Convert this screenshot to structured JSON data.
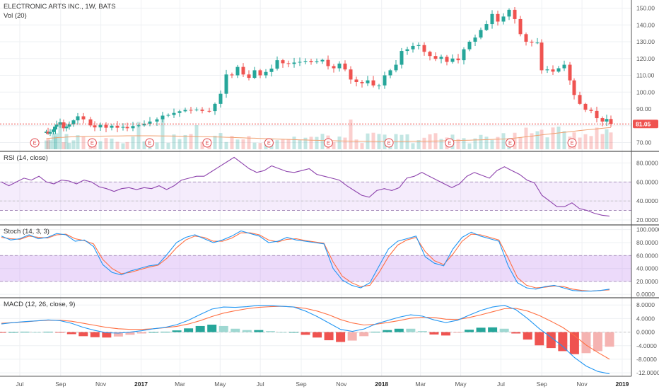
{
  "chart_data": {
    "type": "candlestick",
    "title": "ELECTRONIC ARTS INC., 1W, BATS",
    "time_axis": {
      "ticks": [
        {
          "label": "Jul"
        },
        {
          "label": "Sep"
        },
        {
          "label": "Nov"
        },
        {
          "label": "2017",
          "bold": true
        },
        {
          "label": "Mar"
        },
        {
          "label": "May"
        },
        {
          "label": "Jul"
        },
        {
          "label": "Sep"
        },
        {
          "label": "Nov"
        },
        {
          "label": "2018",
          "bold": true
        },
        {
          "label": "Mar"
        },
        {
          "label": "May"
        },
        {
          "label": "Jul"
        },
        {
          "label": "Sep"
        },
        {
          "label": "Nov"
        },
        {
          "label": "2019",
          "bold": true
        }
      ],
      "start": "2016-06-01",
      "end": "2019-01-15"
    },
    "price_panel": {
      "ylim": [
        66,
        154
      ],
      "ticks": [
        "70.00",
        "80.00",
        "90.00",
        "100.00",
        "110.00",
        "120.00",
        "130.00",
        "140.00",
        "150.00"
      ],
      "tick_values": [
        70,
        80,
        90,
        100,
        110,
        120,
        130,
        140,
        150
      ],
      "last_price": "81.05",
      "last_value": 81.05,
      "up_color": "#26a69a",
      "down_color": "#ef5350",
      "closes": [
        [
          65.5,
          76.5
        ],
        [
          68.0,
          75.3
        ],
        [
          71.0,
          76.2
        ],
        [
          75.5,
          77.8
        ],
        [
          78.5,
          79.5
        ],
        [
          80.0,
          80.6
        ],
        [
          85.0,
          82.0
        ],
        [
          90.0,
          78.5
        ],
        [
          94.0,
          79.5
        ],
        [
          98.0,
          80.8
        ],
        [
          104.0,
          83.2
        ],
        [
          110.0,
          85.6
        ],
        [
          118.0,
          83.8
        ],
        [
          128.0,
          80.2
        ],
        [
          134.0,
          79.0
        ],
        [
          142.0,
          80.5
        ],
        [
          150.0,
          78.8
        ],
        [
          158.0,
          80.0
        ],
        [
          166.0,
          78.8
        ],
        [
          174.0,
          79.3
        ],
        [
          180.0,
          78.5
        ],
        [
          188.0,
          79.8
        ],
        [
          196.0,
          80.2
        ],
        [
          204.0,
          81.2
        ],
        [
          212.0,
          82.5
        ],
        [
          222.0,
          83.8
        ],
        [
          230.0,
          86.0
        ],
        [
          238.0,
          86.4
        ],
        [
          246.0,
          87.6
        ],
        [
          254.0,
          88.6
        ],
        [
          262.0,
          89.4
        ],
        [
          270.0,
          89.2
        ],
        [
          278.0,
          89.6
        ],
        [
          286.0,
          88.8
        ],
        [
          296.0,
          88.7
        ],
        [
          304.0,
          93.0
        ],
        [
          312.0,
          99.0
        ],
        [
          320.0,
          110.5
        ],
        [
          328.0,
          110.0
        ],
        [
          336.0,
          115.0
        ],
        [
          344.0,
          110.5
        ],
        [
          352.0,
          108.5
        ],
        [
          360.0,
          113.0
        ],
        [
          368.0,
          110.0
        ],
        [
          376.0,
          112.0
        ],
        [
          384.0,
          114.0
        ],
        [
          392.0,
          119.0
        ],
        [
          400.0,
          117.2
        ],
        [
          408.0,
          116.8
        ],
        [
          416.0,
          117.6
        ],
        [
          424.0,
          118.0
        ],
        [
          432.0,
          118.5
        ],
        [
          440.0,
          117.8
        ],
        [
          448.0,
          118.3
        ],
        [
          456.0,
          119.2
        ],
        [
          464.0,
          115.5
        ],
        [
          472.0,
          114.2
        ],
        [
          480.0,
          117.0
        ],
        [
          488.0,
          113.5
        ],
        [
          496.0,
          107.5
        ],
        [
          504.0,
          106.0
        ],
        [
          512.0,
          105.3
        ],
        [
          520.0,
          107.0
        ],
        [
          528.0,
          104.0
        ],
        [
          536.0,
          104.0
        ],
        [
          544.0,
          110.0
        ],
        [
          552.0,
          113.0
        ],
        [
          560.0,
          116.3
        ],
        [
          568.0,
          124.5
        ],
        [
          576.0,
          125.5
        ],
        [
          584.0,
          127.5
        ],
        [
          592.0,
          128.0
        ],
        [
          600.0,
          124.0
        ],
        [
          608.0,
          121.5
        ],
        [
          616.0,
          119.8
        ],
        [
          624.0,
          121.0
        ],
        [
          632.0,
          118.0
        ],
        [
          640.0,
          120.0
        ],
        [
          648.0,
          119.0
        ],
        [
          656.0,
          125.5
        ],
        [
          664.0,
          130.0
        ],
        [
          672.0,
          132.5
        ],
        [
          680.0,
          137.0
        ],
        [
          688.0,
          140.5
        ],
        [
          696.0,
          146.5
        ],
        [
          704.0,
          142.0
        ],
        [
          712.0,
          145.0
        ],
        [
          720.0,
          149.0
        ],
        [
          728.0,
          143.5
        ],
        [
          736.0,
          134.5
        ],
        [
          744.0,
          130.0
        ],
        [
          752.0,
          129.5
        ],
        [
          760.0,
          129.5
        ],
        [
          766.0,
          113.0
        ],
        [
          774.0,
          113.5
        ],
        [
          782.0,
          112.2
        ],
        [
          790.0,
          114.2
        ],
        [
          798.0,
          116.3
        ],
        [
          806.0,
          107.0
        ],
        [
          812.0,
          98.3
        ],
        [
          820.0,
          93.0
        ],
        [
          828.0,
          89.5
        ],
        [
          836.0,
          88.8
        ],
        [
          844.0,
          84.5
        ],
        [
          852.0,
          82.5
        ],
        [
          858.0,
          84.0
        ],
        [
          864.0,
          81.1
        ]
      ]
    },
    "volume_panel": {
      "label": "Vol (20)"
    },
    "earnings_markers": {
      "label": "E",
      "x_frac": [
        0.055,
        0.146,
        0.237,
        0.328,
        0.426,
        0.52,
        0.616,
        0.712,
        0.808,
        0.906
      ]
    },
    "rsi_panel": {
      "label": "RSI (14, close)",
      "ylim": [
        17,
        90
      ],
      "ticks": [
        "20.0000",
        "40.0000",
        "60.0000",
        "80.0000"
      ],
      "tick_values": [
        20,
        40,
        60,
        80
      ],
      "band": [
        30,
        60
      ],
      "line_color": "#8e44ad",
      "values": [
        60,
        56,
        60,
        64,
        62,
        66,
        60,
        58,
        62,
        61,
        58,
        62,
        60,
        55,
        53,
        50,
        53,
        54,
        52,
        54,
        53,
        56,
        52,
        56,
        62,
        64,
        66,
        66,
        71,
        76,
        81,
        86,
        80,
        74,
        70,
        72,
        77,
        74,
        71,
        70,
        72,
        74,
        68,
        66,
        64,
        62,
        56,
        51,
        46,
        44,
        51,
        53,
        51,
        54,
        64,
        66,
        70,
        66,
        62,
        58,
        54,
        58,
        66,
        70,
        67,
        64,
        72,
        76,
        72,
        68,
        62,
        59,
        46,
        40,
        34,
        34,
        38,
        32,
        30,
        27,
        25,
        24
      ]
    },
    "stoch_panel": {
      "label": "Stoch (14, 3, 3)",
      "ylim": [
        -2,
        104
      ],
      "ticks": [
        "0.0000",
        "20.0000",
        "40.0000",
        "60.0000",
        "80.0000",
        "100.0000"
      ],
      "tick_values": [
        0,
        20,
        40,
        60,
        80,
        100
      ],
      "band": [
        20,
        60
      ],
      "k_color": "#2196f3",
      "d_color": "#ff7043",
      "k": [
        90,
        84,
        86,
        92,
        86,
        88,
        94,
        92,
        82,
        84,
        74,
        46,
        34,
        30,
        36,
        40,
        44,
        46,
        62,
        80,
        88,
        92,
        86,
        80,
        84,
        90,
        98,
        94,
        90,
        80,
        82,
        88,
        84,
        82,
        80,
        78,
        40,
        22,
        14,
        10,
        18,
        44,
        70,
        82,
        86,
        90,
        58,
        48,
        44,
        70,
        88,
        96,
        90,
        86,
        82,
        44,
        18,
        10,
        8,
        12,
        14,
        10,
        6,
        5,
        5,
        6,
        8
      ],
      "d": [
        88,
        86,
        85,
        90,
        88,
        87,
        92,
        93,
        86,
        83,
        78,
        54,
        40,
        32,
        34,
        38,
        42,
        45,
        56,
        72,
        84,
        90,
        88,
        82,
        82,
        87,
        95,
        95,
        92,
        84,
        81,
        85,
        86,
        83,
        81,
        79,
        50,
        28,
        18,
        12,
        14,
        34,
        58,
        76,
        84,
        88,
        66,
        52,
        46,
        62,
        82,
        93,
        92,
        88,
        84,
        56,
        26,
        14,
        10,
        11,
        13,
        12,
        8,
        6,
        5,
        6,
        7
      ]
    },
    "macd_panel": {
      "label": "MACD (12, 26, close, 9)",
      "ylim": [
        -12.6,
        9.5
      ],
      "ticks": [
        "-12.0000",
        "-8.0000",
        "-4.0000",
        "0.0000",
        "4.0000",
        "8.0000"
      ],
      "tick_values": [
        -12,
        -8,
        -4,
        0,
        4,
        8
      ],
      "macd_color": "#2196f3",
      "signal_color": "#ff7043",
      "hist_up_color": "#26a69a",
      "hist_down_color": "#ef5350",
      "macd": [
        2.4,
        2.8,
        3.1,
        3.3,
        3.6,
        3.4,
        2.6,
        1.4,
        0.5,
        -0.2,
        -0.3,
        0.0,
        0.4,
        1.0,
        1.4,
        2.2,
        3.5,
        5.2,
        6.8,
        7.4,
        7.3,
        7.5,
        7.9,
        7.8,
        7.6,
        7.4,
        6.2,
        4.6,
        2.7,
        0.8,
        0.2,
        0.9,
        2.4,
        3.4,
        4.4,
        5.1,
        4.7,
        3.6,
        2.8,
        3.5,
        5.0,
        6.4,
        7.4,
        7.9,
        6.6,
        4.0,
        1.0,
        -1.5,
        -4.2,
        -7.5,
        -10.0,
        -11.6,
        -12.3
      ],
      "signal": [
        2.6,
        2.8,
        3.0,
        3.3,
        3.5,
        3.5,
        3.2,
        2.6,
        2.0,
        1.4,
        1.0,
        0.8,
        0.8,
        1.0,
        1.3,
        1.7,
        2.4,
        3.4,
        4.6,
        5.6,
        6.3,
        6.9,
        7.3,
        7.5,
        7.6,
        7.4,
        7.0,
        6.2,
        5.1,
        3.7,
        2.7,
        2.1,
        2.3,
        2.8,
        3.4,
        4.1,
        4.4,
        4.3,
        3.8,
        3.7,
        4.3,
        5.1,
        6.0,
        6.9,
        7.0,
        6.2,
        4.9,
        3.2,
        1.4,
        -1.0,
        -3.8,
        -6.0,
        -8.0
      ]
    }
  }
}
